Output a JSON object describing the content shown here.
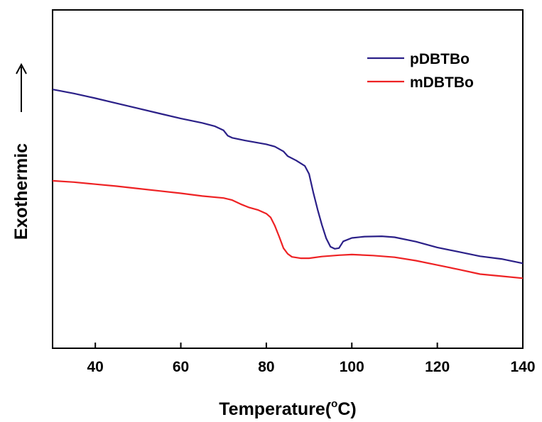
{
  "chart_data": {
    "type": "line",
    "xlabel": "Temperature(",
    "xlabel_super": "o",
    "xlabel_unit": "C)",
    "ylabel": "Exothermic",
    "ylabel_arrow": "⟶",
    "xlim": [
      30,
      140
    ],
    "ylim": [
      0,
      100
    ],
    "x_ticks": [
      "40",
      "60",
      "80",
      "100",
      "120",
      "140"
    ],
    "y_ticks_visible": false,
    "legend_position": "top-right",
    "grid": false,
    "series": [
      {
        "name": "pDBTBo",
        "color": "#2b2088",
        "points": [
          [
            30,
            76.5
          ],
          [
            35,
            75.3
          ],
          [
            40,
            73.9
          ],
          [
            45,
            72.4
          ],
          [
            50,
            70.9
          ],
          [
            55,
            69.4
          ],
          [
            60,
            67.9
          ],
          [
            65,
            66.6
          ],
          [
            68,
            65.6
          ],
          [
            70,
            64.4
          ],
          [
            71,
            62.8
          ],
          [
            72,
            62.2
          ],
          [
            75,
            61.4
          ],
          [
            80,
            60.3
          ],
          [
            82,
            59.6
          ],
          [
            84,
            58.2
          ],
          [
            85,
            56.8
          ],
          [
            87,
            55.5
          ],
          [
            89,
            53.9
          ],
          [
            90,
            51.5
          ],
          [
            91,
            46.0
          ],
          [
            92,
            41.0
          ],
          [
            93,
            36.5
          ],
          [
            94,
            32.5
          ],
          [
            95,
            30.0
          ],
          [
            96,
            29.4
          ],
          [
            97,
            29.6
          ],
          [
            98,
            31.6
          ],
          [
            100,
            32.6
          ],
          [
            103,
            33.0
          ],
          [
            107,
            33.1
          ],
          [
            110,
            32.8
          ],
          [
            115,
            31.5
          ],
          [
            120,
            29.8
          ],
          [
            125,
            28.5
          ],
          [
            130,
            27.2
          ],
          [
            135,
            26.4
          ],
          [
            140,
            25.1
          ]
        ]
      },
      {
        "name": "mDBTBo",
        "color": "#ee2224",
        "points": [
          [
            30,
            49.5
          ],
          [
            35,
            49.1
          ],
          [
            40,
            48.5
          ],
          [
            45,
            47.9
          ],
          [
            50,
            47.2
          ],
          [
            55,
            46.5
          ],
          [
            60,
            45.8
          ],
          [
            65,
            45.0
          ],
          [
            70,
            44.4
          ],
          [
            72,
            43.8
          ],
          [
            74,
            42.6
          ],
          [
            76,
            41.6
          ],
          [
            78,
            40.9
          ],
          [
            80,
            39.8
          ],
          [
            81,
            38.7
          ],
          [
            82,
            36.2
          ],
          [
            83,
            33.0
          ],
          [
            84,
            29.6
          ],
          [
            85,
            27.9
          ],
          [
            86,
            27.0
          ],
          [
            88,
            26.6
          ],
          [
            90,
            26.6
          ],
          [
            93,
            27.1
          ],
          [
            97,
            27.5
          ],
          [
            100,
            27.7
          ],
          [
            105,
            27.4
          ],
          [
            110,
            26.9
          ],
          [
            115,
            25.9
          ],
          [
            120,
            24.6
          ],
          [
            125,
            23.3
          ],
          [
            130,
            21.9
          ],
          [
            135,
            21.3
          ],
          [
            140,
            20.7
          ]
        ]
      }
    ]
  }
}
